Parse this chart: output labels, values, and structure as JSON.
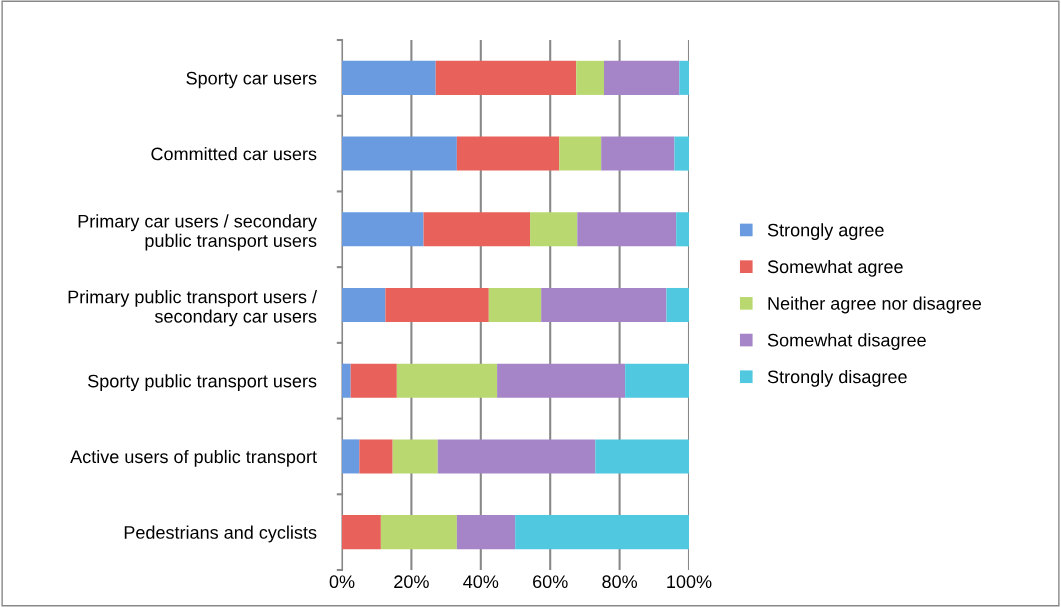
{
  "chart_data": {
    "type": "bar",
    "orientation": "horizontal",
    "stacked": true,
    "categories": [
      "Sporty car users",
      "Committed car users",
      "Primary car users / secondary\npublic transport users",
      "Primary public transport users /\nsecondary car users",
      "Sporty public transport users",
      "Active users of public transport",
      "Pedestrians and cyclists"
    ],
    "series": [
      {
        "name": "Strongly agree",
        "color": "#6a9be0",
        "values": [
          27,
          33.1,
          23.5,
          12.5,
          2.5,
          5,
          0
        ]
      },
      {
        "name": "Somewhat agree",
        "color": "#e8615a",
        "values": [
          40.5,
          29.5,
          30.7,
          29.8,
          13.3,
          9.6,
          11.2
        ]
      },
      {
        "name": "Neither agree nor disagree",
        "color": "#b9d870",
        "values": [
          8,
          12.1,
          13.6,
          15.1,
          28.9,
          13,
          21.9
        ]
      },
      {
        "name": "Somewhat disagree",
        "color": "#a585c8",
        "values": [
          21.7,
          21.1,
          28.5,
          36.1,
          36.9,
          45.4,
          16.8
        ]
      },
      {
        "name": "Strongly disagree",
        "color": "#50c8e0",
        "values": [
          2.8,
          4.2,
          3.7,
          6.5,
          18.4,
          27,
          50.1
        ]
      }
    ],
    "xlim": [
      0,
      100
    ],
    "xticks": [
      {
        "value": 0,
        "label": "0%"
      },
      {
        "value": 20,
        "label": "20%"
      },
      {
        "value": 40,
        "label": "40%"
      },
      {
        "value": 60,
        "label": "60%"
      },
      {
        "value": 80,
        "label": "80%"
      },
      {
        "value": 100,
        "label": "100%"
      }
    ],
    "grid": "x",
    "legend": "right"
  }
}
